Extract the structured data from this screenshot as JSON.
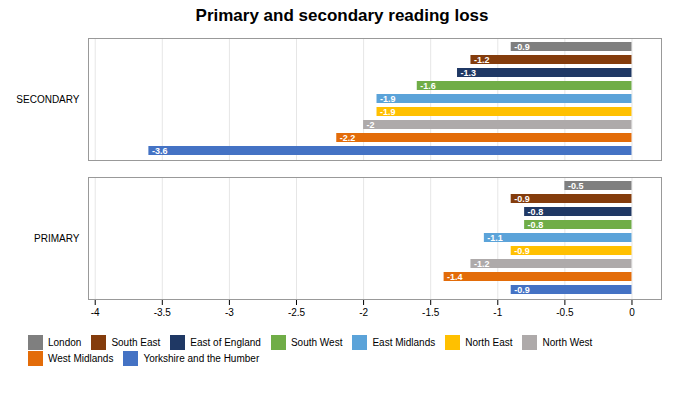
{
  "chart_data": {
    "type": "bar",
    "orientation": "horizontal",
    "title": "Primary and secondary reading loss",
    "categories": [
      "London",
      "South East",
      "East of England",
      "South West",
      "East Midlands",
      "North East",
      "North West",
      "West Midlands",
      "Yorkshire and the Humber"
    ],
    "colors": [
      "#7F7F7F",
      "#843C0C",
      "#1F3864",
      "#70AD47",
      "#5BA3D9",
      "#FFC000",
      "#AEAAAA",
      "#E36C09",
      "#4472C4"
    ],
    "series": [
      {
        "name": "SECONDARY",
        "values": [
          -0.9,
          -1.2,
          -1.3,
          -1.6,
          -1.9,
          -1.9,
          -2.0,
          -2.2,
          -3.6
        ]
      },
      {
        "name": "PRIMARY",
        "values": [
          -0.5,
          -0.9,
          -0.8,
          -0.8,
          -1.1,
          -0.9,
          -1.2,
          -1.4,
          -0.9
        ]
      }
    ],
    "xlim": [
      -4.05,
      0.22
    ],
    "xticks": [
      -4,
      -3.5,
      -3,
      -2.5,
      -2,
      -1.5,
      -1,
      -0.5,
      0
    ],
    "grid": true,
    "data_labels": true,
    "tick_labels": "x",
    "legend": "bottom"
  }
}
